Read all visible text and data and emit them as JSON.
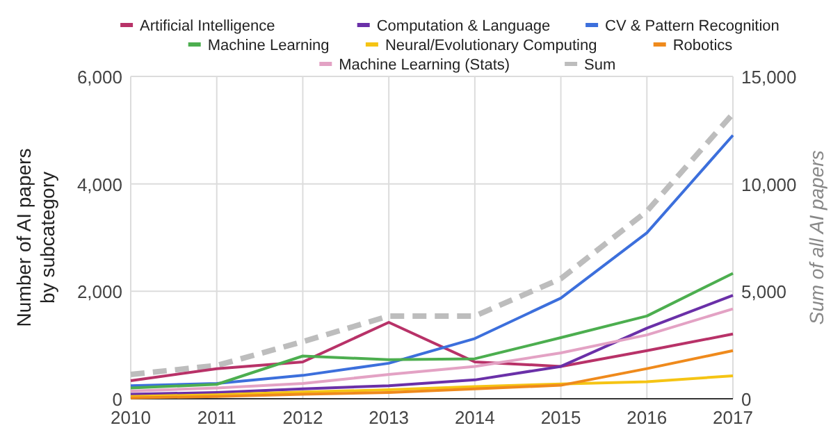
{
  "chart_data": {
    "type": "line",
    "xlabel": null,
    "ylabel": "Number of AI papers by subcategory",
    "y2label": "Sum of all AI papers",
    "x": [
      2010,
      2011,
      2012,
      2013,
      2014,
      2015,
      2016,
      2017
    ],
    "xlim": [
      2010,
      2017
    ],
    "xticks": [
      2010,
      2011,
      2012,
      2013,
      2014,
      2015,
      2016,
      2017
    ],
    "ylim": [
      0,
      6000
    ],
    "yticks": [
      {
        "value": 0,
        "label": "0"
      },
      {
        "value": 2000,
        "label": "2,000"
      },
      {
        "value": 4000,
        "label": "4,000"
      },
      {
        "value": 6000,
        "label": "6,000"
      }
    ],
    "y2lim": [
      0,
      15000
    ],
    "y2ticks": [
      {
        "value": 0,
        "label": "0"
      },
      {
        "value": 5000,
        "label": "5,000"
      },
      {
        "value": 10000,
        "label": "10,000"
      },
      {
        "value": 15000,
        "label": "15,000"
      }
    ],
    "grid": true,
    "legend": "top",
    "series": [
      {
        "name": "Artificial Intelligence",
        "color": "#b83268",
        "values": [
          335,
          560,
          686,
          1423,
          686,
          602,
          895,
          1205
        ]
      },
      {
        "name": "Computation & Language",
        "color": "#6a30a8",
        "values": [
          84,
          117,
          184,
          243,
          351,
          602,
          1314,
          1925
        ]
      },
      {
        "name": "CV & Pattern Recognition",
        "color": "#3c6fdc",
        "values": [
          243,
          285,
          435,
          661,
          1121,
          1874,
          3088,
          4904
        ]
      },
      {
        "name": "Machine Learning",
        "color": "#4cae4f",
        "values": [
          201,
          268,
          795,
          728,
          745,
          1138,
          1540,
          2335
        ]
      },
      {
        "name": "Neural/Evolutionary Computing",
        "color": "#f5c414",
        "values": [
          42,
          75,
          126,
          167,
          226,
          276,
          318,
          427
        ]
      },
      {
        "name": "Robotics",
        "color": "#ef8a1c",
        "values": [
          17,
          42,
          84,
          117,
          184,
          251,
          561,
          895
        ]
      },
      {
        "name": "Machine Learning (Stats)",
        "color": "#e3a2c4",
        "values": [
          142,
          201,
          285,
          452,
          602,
          854,
          1188,
          1674
        ]
      },
      {
        "name": "Sum",
        "color": "#bdbdbd",
        "axis": "y2",
        "line_style": "dashed",
        "values": [
          1130,
          1548,
          2657,
          3849,
          3849,
          5586,
          8724,
          13264
        ]
      }
    ]
  }
}
